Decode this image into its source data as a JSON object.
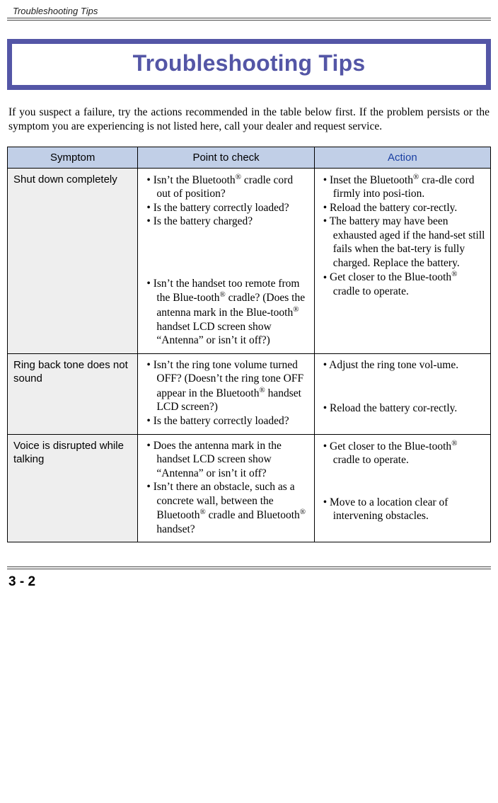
{
  "header": {
    "running": "Troubleshooting Tips"
  },
  "banner": {
    "title": "Troubleshooting Tips"
  },
  "intro": "If you suspect a failure, try the actions recommended in the table below first. If the problem persists or the symptom you are experiencing is not listed here, call your dealer and request service.",
  "columns": {
    "c1": "Symptom",
    "c2": "Point to check",
    "c3": "Action"
  },
  "rows": {
    "r1": {
      "symptom": "Shut down completely",
      "check": {
        "b1": "Isn’t the Bluetooth® cradle cord out of position?",
        "b2": "Is the battery correctly loaded?",
        "b3": "Is the battery charged?",
        "b4": "Isn’t the handset too remote from the Blue-tooth® cradle? (Does the antenna mark in the Blue-tooth® handset LCD screen show “Antenna” or isn’t it off?)"
      },
      "action": {
        "b1": "Inset the Bluetooth® cra-dle cord firmly into posi-tion.",
        "b2": "Reload the battery cor-rectly.",
        "b3": "The battery may have been exhausted aged if the hand-set still fails when the bat-tery is fully charged. Replace the battery.",
        "b4": "Get closer to the Blue-tooth® cradle to operate."
      }
    },
    "r2": {
      "symptom": "Ring back tone does not sound",
      "check": {
        "b1": "Isn’t the ring tone volume turned OFF? (Doesn’t the ring tone OFF appear in the Bluetooth® handset LCD screen?)",
        "b2": "Is the battery correctly loaded?"
      },
      "action": {
        "b1": "Adjust the ring tone vol-ume.",
        "b2": "Reload the battery cor-rectly."
      }
    },
    "r3": {
      "symptom": "Voice is disrupted while talking",
      "check": {
        "b1": "Does the antenna mark in the handset LCD screen show “Antenna” or isn’t it off?",
        "b2": "Isn’t there an obstacle, such as a concrete wall, between the Bluetooth® cradle and Bluetooth® handset?"
      },
      "action": {
        "b1": "Get closer to the Blue-tooth® cradle to operate.",
        "b2": "Move to a location clear of intervening obstacles."
      }
    }
  },
  "pagenum": "3 - 2",
  "colwidths": {
    "c1": "27%",
    "c2": "36.5%",
    "c3": "36.5%"
  },
  "colors": {
    "banner_bg": "#5456a6",
    "banner_text": "#5456a6",
    "th_bg": "#c1cfe7",
    "action_header": "#1a3fa2",
    "sym_bg": "#eeeeee"
  }
}
